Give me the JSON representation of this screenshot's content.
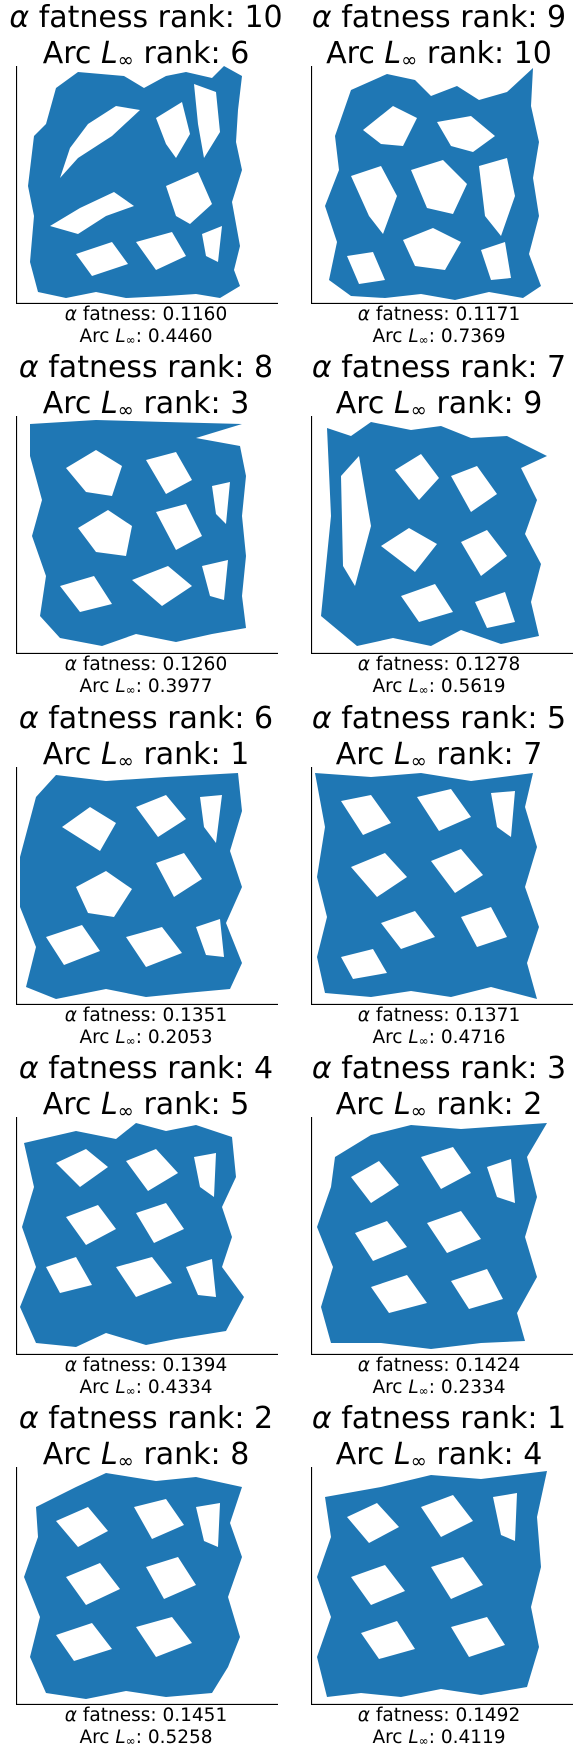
{
  "colors": {
    "polygon_fill": "#1f77b4",
    "axis": "#000000"
  },
  "labels": {
    "fatness_rank_word": "fatness rank:",
    "arc_word": "Arc",
    "rank_word": "rank:",
    "fatness_word": "fatness:",
    "alpha_symbol": "α",
    "l_symbol": "L",
    "infinity_symbol": "∞"
  },
  "panels": [
    {
      "alpha_rank": "10",
      "arc_rank": "6",
      "alpha_fatness": "0.1160",
      "arc_linf": "0.4460"
    },
    {
      "alpha_rank": "9",
      "arc_rank": "10",
      "alpha_fatness": "0.1171",
      "arc_linf": "0.7369"
    },
    {
      "alpha_rank": "8",
      "arc_rank": "3",
      "alpha_fatness": "0.1260",
      "arc_linf": "0.3977"
    },
    {
      "alpha_rank": "7",
      "arc_rank": "9",
      "alpha_fatness": "0.1278",
      "arc_linf": "0.5619"
    },
    {
      "alpha_rank": "6",
      "arc_rank": "1",
      "alpha_fatness": "0.1351",
      "arc_linf": "0.2053"
    },
    {
      "alpha_rank": "5",
      "arc_rank": "7",
      "alpha_fatness": "0.1371",
      "arc_linf": "0.4716"
    },
    {
      "alpha_rank": "4",
      "arc_rank": "5",
      "alpha_fatness": "0.1394",
      "arc_linf": "0.4334"
    },
    {
      "alpha_rank": "3",
      "arc_rank": "2",
      "alpha_fatness": "0.1424",
      "arc_linf": "0.2334"
    },
    {
      "alpha_rank": "2",
      "arc_rank": "8",
      "alpha_fatness": "0.1451",
      "arc_linf": "0.5258"
    },
    {
      "alpha_rank": "1",
      "arc_rank": "4",
      "alpha_fatness": "0.1492",
      "arc_linf": "0.4119"
    }
  ]
}
